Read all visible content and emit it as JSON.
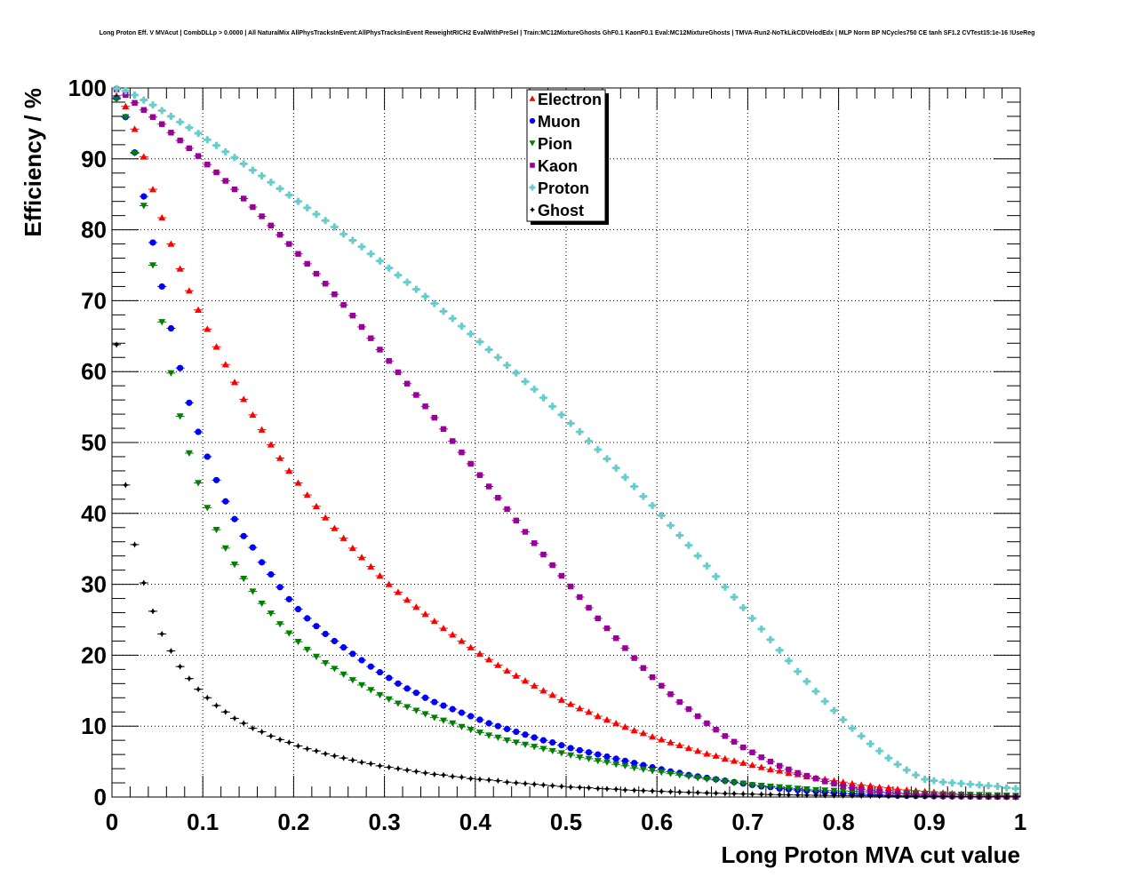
{
  "chart_data": {
    "type": "scatter",
    "title": "Long Proton Eff. V MVAcut | CombDLLp > 0.0000 | All NaturalMix AllPhysTracksInEvent:AllPhysTracksInEvent ReweightRICH2 EvalWithPreSel | Train:MC12MixtureGhosts GhF0.1 KaonF0.1 Eval:MC12MixtureGhosts | TMVA-Run2-NoTkLikCDVelodEdx | MLP Norm BP NCycles750 CE tanh SF1.2 CVTest15:1e-16 !UseReg",
    "xlabel": "Long Proton MVA cut value",
    "ylabel": "Efficiency / %",
    "xlim": [
      0,
      1
    ],
    "ylim": [
      0,
      100
    ],
    "x_ticks": [
      "0",
      "0.1",
      "0.2",
      "0.3",
      "0.4",
      "0.5",
      "0.6",
      "0.7",
      "0.8",
      "0.9",
      "1"
    ],
    "y_ticks": [
      "0",
      "10",
      "20",
      "30",
      "40",
      "50",
      "60",
      "70",
      "80",
      "90",
      "100"
    ],
    "grid": true,
    "legend_position": "top-center",
    "x": [
      0.005,
      0.015,
      0.025,
      0.035,
      0.045,
      0.055,
      0.065,
      0.075,
      0.085,
      0.095,
      0.105,
      0.115,
      0.125,
      0.135,
      0.145,
      0.155,
      0.165,
      0.175,
      0.185,
      0.195,
      0.205,
      0.215,
      0.225,
      0.235,
      0.245,
      0.255,
      0.265,
      0.275,
      0.285,
      0.295,
      0.305,
      0.315,
      0.325,
      0.335,
      0.345,
      0.355,
      0.365,
      0.375,
      0.385,
      0.395,
      0.405,
      0.415,
      0.425,
      0.435,
      0.445,
      0.455,
      0.465,
      0.475,
      0.485,
      0.495,
      0.505,
      0.515,
      0.525,
      0.535,
      0.545,
      0.555,
      0.565,
      0.575,
      0.585,
      0.595,
      0.605,
      0.615,
      0.625,
      0.635,
      0.645,
      0.655,
      0.665,
      0.675,
      0.685,
      0.695,
      0.705,
      0.715,
      0.725,
      0.735,
      0.745,
      0.755,
      0.765,
      0.775,
      0.785,
      0.795,
      0.805,
      0.815,
      0.825,
      0.835,
      0.845,
      0.855,
      0.865,
      0.875,
      0.885,
      0.895,
      0.905,
      0.915,
      0.925,
      0.935,
      0.945,
      0.955,
      0.965,
      0.975,
      0.985,
      0.995
    ],
    "series": [
      {
        "name": "Electron",
        "color": "#ff0000",
        "marker": "triangle-up",
        "values": [
          98.9,
          97.4,
          94.2,
          90.3,
          85.7,
          81.7,
          78.0,
          74.5,
          71.4,
          68.7,
          66.0,
          63.5,
          61.0,
          58.5,
          56.1,
          53.9,
          51.8,
          49.7,
          47.8,
          46.0,
          44.3,
          42.6,
          41.0,
          39.4,
          37.9,
          36.5,
          35.1,
          33.8,
          32.5,
          31.2,
          30.0,
          28.9,
          27.8,
          26.8,
          25.8,
          24.8,
          23.8,
          22.9,
          22.0,
          21.1,
          20.2,
          19.4,
          18.6,
          17.8,
          17.1,
          16.4,
          15.7,
          15.0,
          14.4,
          13.7,
          13.1,
          12.5,
          12.0,
          11.4,
          10.9,
          10.4,
          9.9,
          9.4,
          9.0,
          8.5,
          8.1,
          7.7,
          7.3,
          6.9,
          6.5,
          6.1,
          5.8,
          5.4,
          5.1,
          4.8,
          4.5,
          4.2,
          3.9,
          3.7,
          3.4,
          3.2,
          2.9,
          2.7,
          2.5,
          2.3,
          2.1,
          1.9,
          1.7,
          1.6,
          1.4,
          1.3,
          1.1,
          1.0,
          0.9,
          0.8,
          0.7,
          0.6,
          0.5,
          0.4,
          0.35,
          0.3,
          0.25,
          0.2,
          0.15,
          0.1
        ]
      },
      {
        "name": "Muon",
        "color": "#0000ff",
        "marker": "circle",
        "values": [
          98.6,
          95.9,
          90.9,
          84.7,
          78.2,
          72.0,
          66.1,
          60.5,
          55.6,
          51.5,
          48.0,
          44.7,
          41.7,
          39.2,
          36.8,
          35.2,
          33.1,
          31.4,
          29.6,
          27.9,
          26.5,
          25.2,
          24.1,
          23.0,
          22.0,
          21.1,
          20.2,
          19.3,
          18.4,
          17.6,
          16.8,
          16.0,
          15.3,
          14.7,
          14.0,
          13.4,
          12.9,
          12.4,
          11.9,
          11.4,
          10.9,
          10.4,
          10.0,
          9.6,
          9.2,
          8.8,
          8.4,
          8.0,
          7.7,
          7.3,
          6.9,
          6.6,
          6.3,
          6.0,
          5.7,
          5.4,
          5.1,
          4.8,
          4.5,
          4.2,
          3.9,
          3.6,
          3.4,
          3.1,
          2.9,
          2.7,
          2.5,
          2.3,
          2.1,
          1.9,
          1.7,
          1.5,
          1.4,
          1.2,
          1.1,
          1.0,
          0.9,
          0.8,
          0.7,
          0.6,
          0.5,
          0.45,
          0.4,
          0.35,
          0.3,
          0.25,
          0.2,
          0.18,
          0.16,
          0.14,
          0.12,
          0.1,
          0.09,
          0.08,
          0.07,
          0.06,
          0.05,
          0.04,
          0.03,
          0.02
        ]
      },
      {
        "name": "Pion",
        "color": "#008000",
        "marker": "triangle-down",
        "values": [
          98.4,
          95.9,
          90.8,
          83.4,
          75.0,
          67.0,
          59.8,
          53.7,
          48.5,
          44.3,
          40.8,
          37.7,
          35.1,
          32.8,
          30.8,
          29.0,
          27.3,
          25.9,
          24.4,
          23.1,
          21.9,
          20.8,
          19.8,
          18.9,
          18.1,
          17.3,
          16.5,
          15.8,
          15.1,
          14.4,
          13.8,
          13.2,
          12.7,
          12.2,
          11.7,
          11.2,
          10.8,
          10.4,
          9.9,
          9.5,
          9.1,
          8.7,
          8.4,
          8.0,
          7.7,
          7.4,
          7.1,
          6.8,
          6.5,
          6.2,
          5.9,
          5.6,
          5.4,
          5.1,
          4.9,
          4.6,
          4.4,
          4.1,
          3.9,
          3.7,
          3.5,
          3.3,
          3.1,
          2.9,
          2.7,
          2.5,
          2.4,
          2.2,
          2.0,
          1.9,
          1.7,
          1.6,
          1.5,
          1.4,
          1.3,
          1.2,
          1.1,
          1.0,
          0.95,
          0.9,
          0.85,
          0.8,
          0.75,
          0.7,
          0.65,
          0.6,
          0.55,
          0.5,
          0.48,
          0.45,
          0.42,
          0.4,
          0.38,
          0.35,
          0.33,
          0.3,
          0.28,
          0.25,
          0.22,
          0.2
        ]
      },
      {
        "name": "Kaon",
        "color": "#990099",
        "marker": "square",
        "values": [
          99.8,
          99.0,
          97.9,
          96.9,
          95.9,
          94.9,
          93.7,
          92.6,
          91.5,
          90.4,
          89.2,
          88.1,
          86.9,
          85.7,
          84.4,
          83.2,
          81.9,
          80.6,
          79.3,
          78.0,
          76.6,
          75.2,
          73.8,
          72.4,
          70.9,
          69.4,
          67.9,
          66.3,
          64.7,
          63.1,
          61.5,
          59.9,
          58.3,
          56.7,
          55.1,
          53.5,
          51.9,
          50.2,
          48.6,
          47.0,
          45.4,
          43.8,
          42.2,
          40.6,
          39.0,
          37.4,
          35.8,
          34.2,
          32.7,
          31.2,
          29.7,
          28.2,
          26.7,
          25.2,
          23.8,
          22.4,
          21.0,
          19.6,
          18.2,
          16.9,
          15.7,
          14.5,
          13.4,
          12.4,
          11.4,
          10.4,
          9.5,
          8.6,
          7.8,
          7.0,
          6.3,
          5.6,
          5.0,
          4.4,
          3.9,
          3.4,
          3.0,
          2.6,
          2.2,
          1.9,
          1.6,
          1.3,
          1.1,
          0.9,
          0.75,
          0.6,
          0.5,
          0.4,
          0.33,
          0.27,
          0.22,
          0.18,
          0.15,
          0.12,
          0.1,
          0.08,
          0.06,
          0.05,
          0.04,
          0.03
        ]
      },
      {
        "name": "Proton",
        "color": "#66cccc",
        "marker": "cross",
        "values": [
          99.9,
          99.6,
          99.0,
          98.3,
          97.6,
          96.8,
          96.0,
          95.2,
          94.4,
          93.6,
          92.7,
          91.9,
          91.0,
          90.2,
          89.3,
          88.4,
          87.6,
          86.7,
          85.8,
          84.9,
          84.0,
          83.1,
          82.2,
          81.3,
          80.4,
          79.4,
          78.5,
          77.6,
          76.6,
          75.6,
          74.6,
          73.6,
          72.6,
          71.6,
          70.6,
          69.6,
          68.5,
          67.5,
          66.4,
          65.3,
          64.2,
          63.1,
          62.0,
          60.9,
          59.8,
          58.6,
          57.5,
          56.3,
          55.1,
          53.9,
          52.7,
          51.5,
          50.2,
          49.0,
          47.7,
          46.4,
          45.1,
          43.8,
          42.4,
          41.1,
          39.7,
          38.3,
          36.9,
          35.5,
          34.0,
          32.6,
          31.1,
          29.6,
          28.2,
          26.7,
          25.2,
          23.7,
          22.2,
          20.7,
          19.2,
          17.7,
          16.3,
          14.9,
          13.5,
          12.2,
          10.9,
          9.7,
          8.6,
          7.5,
          6.5,
          5.5,
          4.6,
          3.8,
          3.1,
          2.5,
          2.3,
          2.1,
          2.0,
          1.9,
          1.8,
          1.7,
          1.6,
          1.5,
          1.3,
          1.2
        ]
      },
      {
        "name": "Ghost",
        "color": "#000000",
        "marker": "star",
        "values": [
          63.8,
          44.0,
          35.6,
          30.2,
          26.2,
          23.0,
          20.6,
          18.4,
          16.7,
          15.2,
          14.0,
          12.9,
          12.0,
          11.1,
          10.4,
          9.7,
          9.2,
          8.6,
          8.1,
          7.7,
          7.2,
          6.8,
          6.5,
          6.1,
          5.8,
          5.5,
          5.2,
          4.9,
          4.7,
          4.4,
          4.2,
          4.0,
          3.8,
          3.6,
          3.4,
          3.2,
          3.1,
          2.9,
          2.8,
          2.6,
          2.5,
          2.4,
          2.3,
          2.1,
          2.0,
          1.9,
          1.8,
          1.7,
          1.6,
          1.5,
          1.4,
          1.35,
          1.3,
          1.2,
          1.15,
          1.1,
          1.0,
          0.95,
          0.9,
          0.85,
          0.8,
          0.75,
          0.7,
          0.66,
          0.62,
          0.58,
          0.54,
          0.5,
          0.47,
          0.44,
          0.41,
          0.38,
          0.35,
          0.33,
          0.31,
          0.29,
          0.27,
          0.25,
          0.23,
          0.21,
          0.2,
          0.18,
          0.17,
          0.16,
          0.15,
          0.14,
          0.13,
          0.12,
          0.11,
          0.1,
          0.09,
          0.08,
          0.07,
          0.06,
          0.05,
          0.05,
          0.04,
          0.04,
          0.03,
          0.03
        ]
      }
    ]
  }
}
